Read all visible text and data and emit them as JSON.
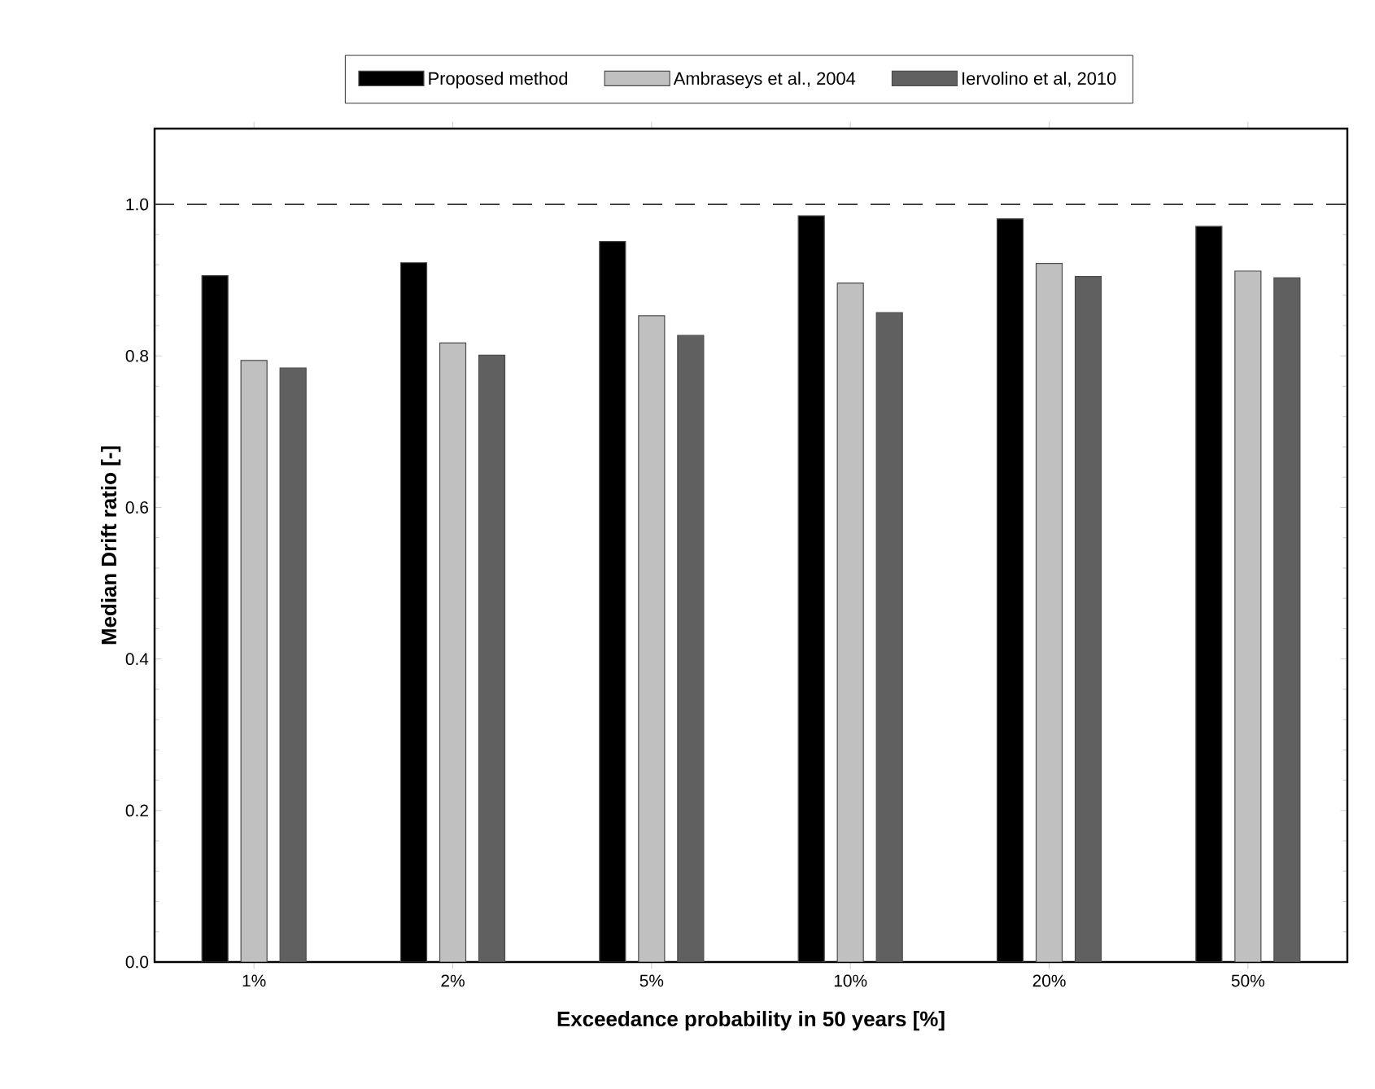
{
  "chart_data": {
    "type": "bar",
    "xlabel": "Exceedance probability in 50 years [%]",
    "ylabel": "Median Drift ratio [-]",
    "categories": [
      "1%",
      "2%",
      "5%",
      "10%",
      "20%",
      "50%"
    ],
    "series": [
      {
        "name": "Proposed method",
        "color": "#000000",
        "values": [
          0.906,
          0.923,
          0.951,
          0.985,
          0.981,
          0.971
        ]
      },
      {
        "name": "Ambraseys et al., 2004",
        "color": "#c0c0c0",
        "values": [
          0.794,
          0.817,
          0.853,
          0.896,
          0.922,
          0.912
        ]
      },
      {
        "name": "Iervolino et al, 2010",
        "color": "#606060",
        "values": [
          0.784,
          0.801,
          0.827,
          0.857,
          0.905,
          0.903
        ]
      }
    ],
    "ylim": [
      0,
      1.1
    ],
    "yticks": [
      {
        "value": 0,
        "label": "0.0"
      },
      {
        "value": 0.2,
        "label": "0.2"
      },
      {
        "value": 0.4,
        "label": "0.4"
      },
      {
        "value": 0.6,
        "label": "0.6"
      },
      {
        "value": 0.8,
        "label": "0.8"
      },
      {
        "value": 1,
        "label": "1.0"
      }
    ],
    "ref_lines": [
      {
        "axis": "y",
        "value": 1,
        "line_style": "dashed"
      }
    ],
    "grid": false,
    "legend": "top"
  }
}
